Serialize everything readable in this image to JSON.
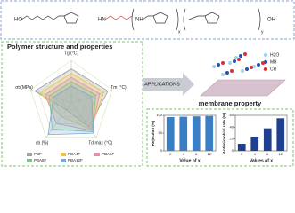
{
  "structure": {
    "labels": [
      "HO",
      "HN",
      "NH",
      "x",
      "y",
      "OH"
    ]
  },
  "left_title": "Polymer structure and properties",
  "applications": "APPLICATIONS",
  "solutes": [
    {
      "name": "H2O",
      "color": "#9fd3ef"
    },
    {
      "name": "MB",
      "color": "#2b4fb5"
    },
    {
      "name": "CR",
      "color": "#d8322f"
    }
  ],
  "membrane_title": "membrane property",
  "chart_data": [
    {
      "type": "radar",
      "axes": [
        "Tg (°C)",
        "Tm (°C)",
        "Td,max (°C)",
        "εb (%)",
        "σt (MPa)"
      ],
      "rlim": [
        0,
        5
      ],
      "rticks": [
        1,
        2,
        3,
        4,
        5
      ],
      "series": [
        {
          "name": "PBF",
          "color": "#9e9e9e",
          "values": [
            4,
            4.5,
            3.5,
            1,
            4.5
          ]
        },
        {
          "name": "PBA4F",
          "color": "#e8c34a",
          "values": [
            3.5,
            4,
            3.8,
            2,
            3.8
          ]
        },
        {
          "name": "PBA6F",
          "color": "#e48fa8",
          "values": [
            3,
            3.5,
            4,
            3,
            3.2
          ]
        },
        {
          "name": "PBA8F",
          "color": "#7cc48a",
          "values": [
            2.5,
            3,
            4.2,
            3.8,
            2.7
          ]
        },
        {
          "name": "PBA12F",
          "color": "#7aa6d8",
          "values": [
            2,
            2.5,
            4.4,
            4.6,
            2.2
          ]
        }
      ]
    },
    {
      "type": "bar",
      "y_label": "Rejection (%)",
      "x_label": "Value of x",
      "categories": [
        "0",
        "4",
        "8",
        "12"
      ],
      "values": [
        95,
        96,
        97,
        98
      ],
      "color": "#3a7fc4",
      "ylim": [
        0,
        100
      ],
      "yticks": [
        0,
        50,
        100
      ]
    },
    {
      "type": "bar",
      "y_label": "Antimicrobial rate (%)",
      "x_label": "Values of x",
      "categories": [
        "0",
        "4",
        "8",
        "12"
      ],
      "values": [
        12,
        24,
        38,
        55
      ],
      "color": "#1f3f8f",
      "ylim": [
        0,
        60
      ],
      "yticks": [
        0,
        20,
        40,
        60
      ]
    }
  ]
}
